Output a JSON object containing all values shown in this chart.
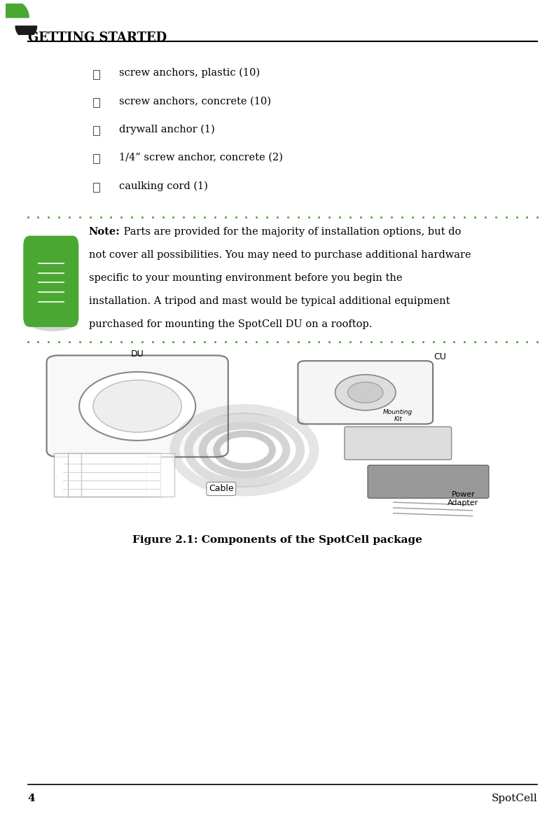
{
  "page_width": 7.91,
  "page_height": 11.85,
  "bg_color": "#ffffff",
  "header_text": "GETTING STARTED",
  "header_font_size": 13,
  "logo_color": "#4aa832",
  "page_number": "4",
  "footer_right": "SpotCell",
  "footer_font_size": 11,
  "bullet_items": [
    "screw anchors, plastic (10)",
    "screw anchors, concrete (10)",
    "drywall anchor (1)",
    "1/4” screw anchor, concrete (2)",
    "caulking cord (1)"
  ],
  "bullet_font_size": 11,
  "note_bold": "Note:",
  "note_lines": [
    "Note: Parts are provided for the majority of installation options, but do",
    "not cover all possibilities. You may need to purchase additional hardware",
    "specific to your mounting environment before you begin the",
    "installation. A tripod and mast would be typical additional equipment",
    "purchased for mounting the SpotCell DU on a rooftop."
  ],
  "note_font_size": 11,
  "dot_color": "#4aa832",
  "figure_caption": "Figure 2.1: Components of the SpotCell package",
  "figure_caption_font_size": 11,
  "label_DU": "DU",
  "label_CU": "CU",
  "label_Cable": "Cable",
  "label_PowerAdapter": "Power\nAdapter",
  "label_MountingKit": "Mounting\nKit"
}
